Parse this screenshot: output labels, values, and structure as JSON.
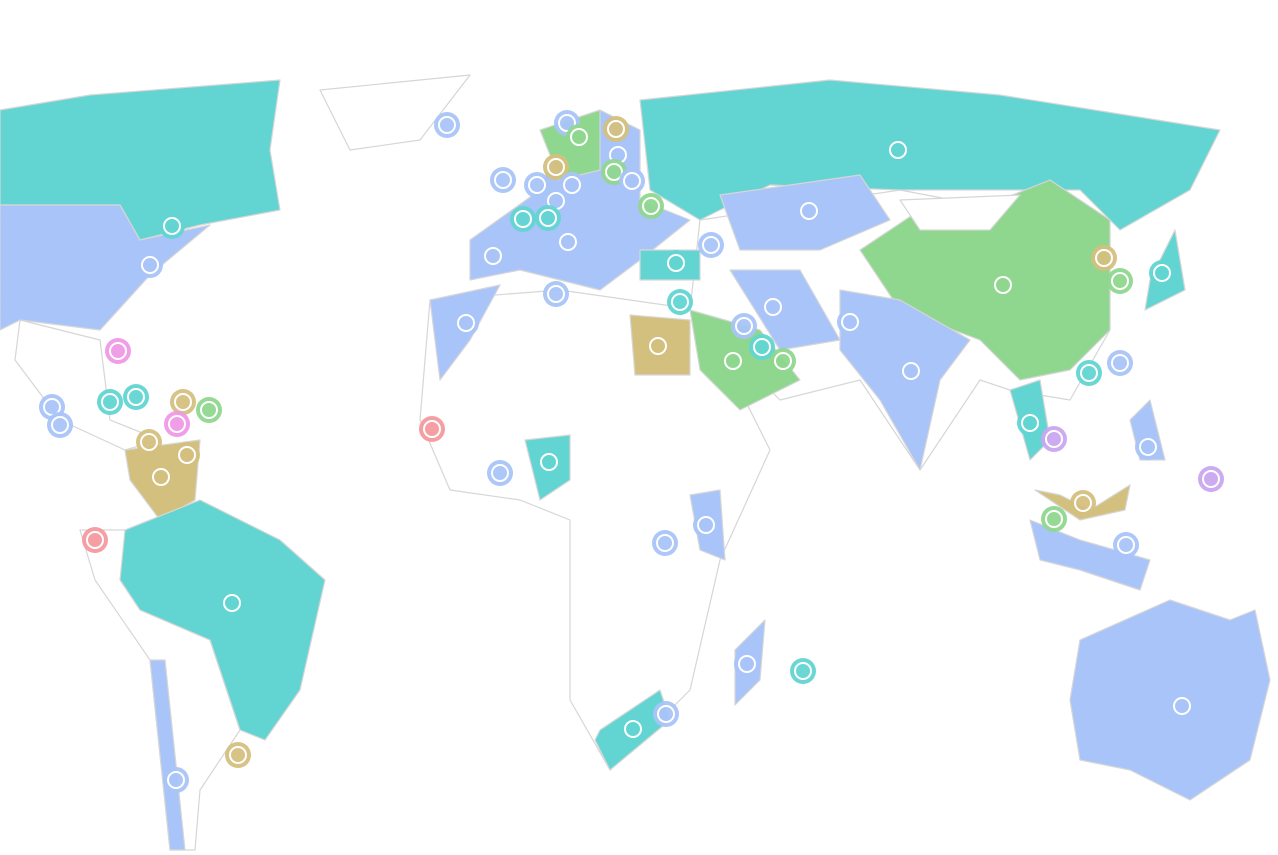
{
  "map": {
    "colors": [
      "#62d5d3",
      "#a8c4f8",
      "#8fd78f",
      "#d4c07e",
      "#f49aa0",
      "#c9a6f0",
      "#ee99e6"
    ]
  }
}
